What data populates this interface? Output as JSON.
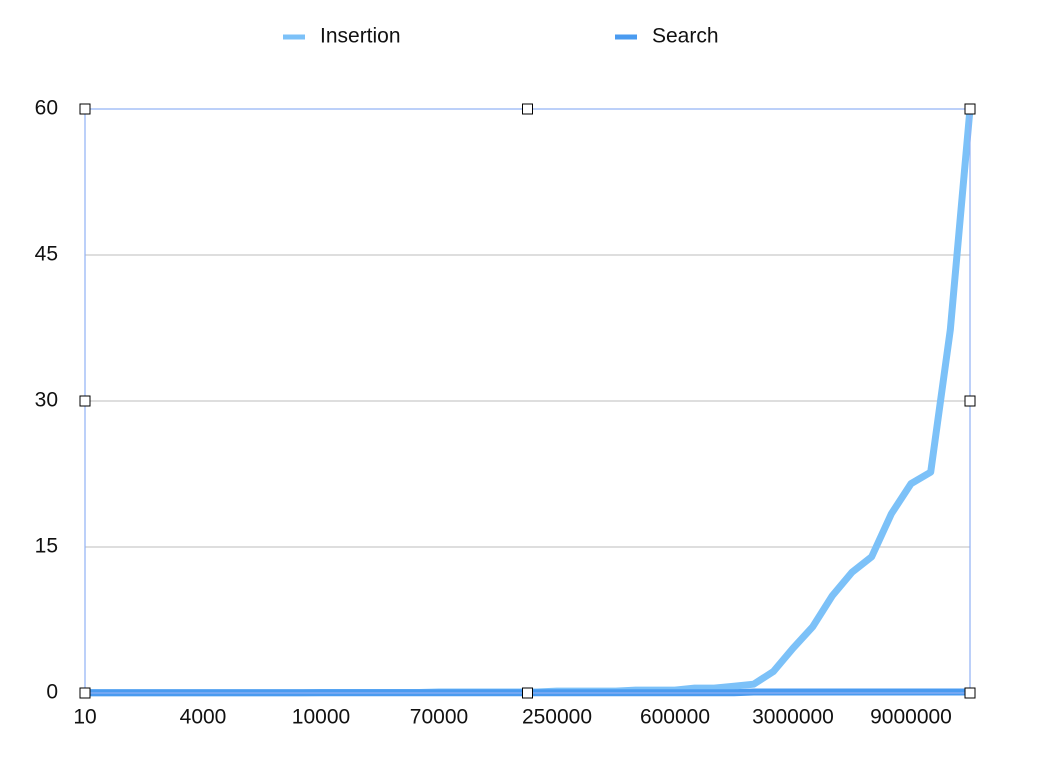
{
  "chart_data": {
    "type": "line",
    "categories": [
      "10",
      null,
      null,
      null,
      null,
      null,
      "4000",
      null,
      null,
      null,
      null,
      null,
      "10000",
      null,
      null,
      null,
      null,
      null,
      "70000",
      null,
      null,
      null,
      null,
      null,
      "250000",
      null,
      null,
      null,
      null,
      null,
      "600000",
      null,
      null,
      null,
      null,
      null,
      "3000000",
      null,
      null,
      null,
      null,
      null,
      "9000000",
      null,
      null,
      null
    ],
    "series": [
      {
        "name": "Insertion",
        "color": "#7cc1f8",
        "values": [
          0.02,
          0.02,
          0.02,
          0.02,
          0.02,
          0.02,
          0.02,
          0.02,
          0.02,
          0.02,
          0.02,
          0.02,
          0.05,
          0.05,
          0.05,
          0.05,
          0.05,
          0.05,
          0.1,
          0.1,
          0.1,
          0.1,
          0.1,
          0.1,
          0.2,
          0.2,
          0.2,
          0.2,
          0.3,
          0.3,
          0.3,
          0.5,
          0.5,
          0.7,
          0.9,
          2.2,
          4.6,
          6.8,
          10,
          12.4,
          14,
          18.4,
          21.5,
          22.7,
          37.3,
          60
        ]
      },
      {
        "name": "Search",
        "color": "#4a9bf0",
        "values": [
          0.02,
          0.02,
          0.02,
          0.02,
          0.02,
          0.02,
          0.02,
          0.02,
          0.02,
          0.02,
          0.02,
          0.02,
          0.02,
          0.02,
          0.02,
          0.02,
          0.02,
          0.02,
          0.02,
          0.02,
          0.02,
          0.02,
          0.02,
          0.02,
          0.02,
          0.02,
          0.02,
          0.02,
          0.02,
          0.02,
          0.02,
          0.02,
          0.02,
          0.02,
          0.1,
          0.1,
          0.1,
          0.1,
          0.1,
          0.1,
          0.1,
          0.1,
          0.1,
          0.1,
          0.1,
          0.1
        ]
      }
    ],
    "ylim": [
      0,
      60
    ],
    "yticks": [
      0,
      15,
      30,
      45,
      60
    ],
    "grid": true,
    "legend": "top"
  }
}
